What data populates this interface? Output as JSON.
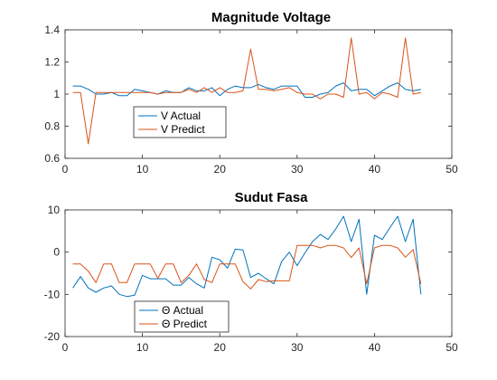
{
  "chart_data": [
    {
      "type": "line",
      "title": "Magnitude Voltage",
      "xlabel": "",
      "ylabel": "",
      "xlim": [
        0,
        50
      ],
      "ylim": [
        0.6,
        1.4
      ],
      "xticks": [
        0,
        10,
        20,
        30,
        40,
        50
      ],
      "yticks": [
        0.6,
        0.8,
        1,
        1.2,
        1.4
      ],
      "grid": false,
      "legend_position": "lower-left",
      "x": [
        1,
        2,
        3,
        4,
        5,
        6,
        7,
        8,
        9,
        10,
        11,
        12,
        13,
        14,
        15,
        16,
        17,
        18,
        19,
        20,
        21,
        22,
        23,
        24,
        25,
        26,
        27,
        28,
        29,
        30,
        31,
        32,
        33,
        34,
        35,
        36,
        37,
        38,
        39,
        40,
        41,
        42,
        43,
        44,
        45,
        46
      ],
      "series": [
        {
          "name": "V Actual",
          "color": "#0072BD",
          "values": [
            1.05,
            1.05,
            1.03,
            1.0,
            1.0,
            1.01,
            0.99,
            0.99,
            1.03,
            1.02,
            1.01,
            1.0,
            1.02,
            1.01,
            1.01,
            1.04,
            1.02,
            1.02,
            1.04,
            0.99,
            1.03,
            1.05,
            1.04,
            1.04,
            1.06,
            1.04,
            1.03,
            1.05,
            1.05,
            1.05,
            0.98,
            0.98,
            1.0,
            1.01,
            1.05,
            1.07,
            1.02,
            1.03,
            1.03,
            0.99,
            1.02,
            1.05,
            1.07,
            1.03,
            1.02,
            1.03
          ]
        },
        {
          "name": "V Predict",
          "color": "#D95319",
          "values": [
            1.01,
            1.01,
            0.69,
            1.01,
            1.01,
            1.01,
            1.01,
            1.01,
            1.01,
            1.01,
            1.01,
            1.0,
            1.01,
            1.01,
            1.01,
            1.03,
            1.01,
            1.04,
            1.01,
            1.04,
            1.01,
            1.01,
            1.02,
            1.28,
            1.03,
            1.03,
            1.02,
            1.03,
            1.04,
            1.01,
            1.0,
            1.0,
            0.97,
            1.0,
            1.0,
            0.98,
            1.35,
            1.0,
            1.01,
            0.97,
            1.01,
            1.0,
            0.98,
            1.35,
            1.0,
            1.01
          ]
        }
      ]
    },
    {
      "type": "line",
      "title": "Sudut Fasa",
      "xlabel": "",
      "ylabel": "",
      "xlim": [
        0,
        50
      ],
      "ylim": [
        -20,
        10
      ],
      "xticks": [
        0,
        10,
        20,
        30,
        40,
        50
      ],
      "yticks": [
        -20,
        -10,
        0,
        10
      ],
      "grid": false,
      "legend_position": "lower-left",
      "x": [
        1,
        2,
        3,
        4,
        5,
        6,
        7,
        8,
        9,
        10,
        11,
        12,
        13,
        14,
        15,
        16,
        17,
        18,
        19,
        20,
        21,
        22,
        23,
        24,
        25,
        26,
        27,
        28,
        29,
        30,
        31,
        32,
        33,
        34,
        35,
        36,
        37,
        38,
        39,
        40,
        41,
        42,
        43,
        44,
        45,
        46
      ],
      "series": [
        {
          "name": "Θ Actual",
          "color": "#0072BD",
          "values": [
            -8.5,
            -5.8,
            -8.5,
            -9.5,
            -8.5,
            -8.0,
            -10.0,
            -10.5,
            -10.2,
            -5.5,
            -6.3,
            -6.3,
            -6.3,
            -7.8,
            -7.8,
            -6.0,
            -7.5,
            -8.5,
            -1.2,
            -1.8,
            -3.8,
            0.7,
            0.5,
            -6.0,
            -5.0,
            -6.3,
            -7.5,
            -2.2,
            0.0,
            -3.2,
            -0.2,
            2.5,
            4.2,
            3.0,
            5.5,
            8.5,
            2.5,
            7.8,
            -10.0,
            4.0,
            3.0,
            5.8,
            8.5,
            2.5,
            7.8,
            -10.0
          ]
        },
        {
          "name": "Θ Predict",
          "color": "#D95319",
          "values": [
            -2.8,
            -2.8,
            -4.5,
            -7.2,
            -2.8,
            -2.8,
            -7.2,
            -7.2,
            -2.8,
            -2.8,
            -2.8,
            -6.2,
            -2.8,
            -2.8,
            -7.2,
            -5.5,
            -2.8,
            -6.5,
            -7.2,
            -2.8,
            -2.8,
            -2.8,
            -7.0,
            -8.7,
            -6.5,
            -7.0,
            -6.8,
            -6.8,
            -6.8,
            1.6,
            1.6,
            1.6,
            1.0,
            1.6,
            1.6,
            1.0,
            -1.3,
            1.0,
            -7.5,
            1.0,
            1.6,
            1.6,
            1.0,
            -1.2,
            0.6,
            -7.5
          ]
        }
      ]
    }
  ]
}
